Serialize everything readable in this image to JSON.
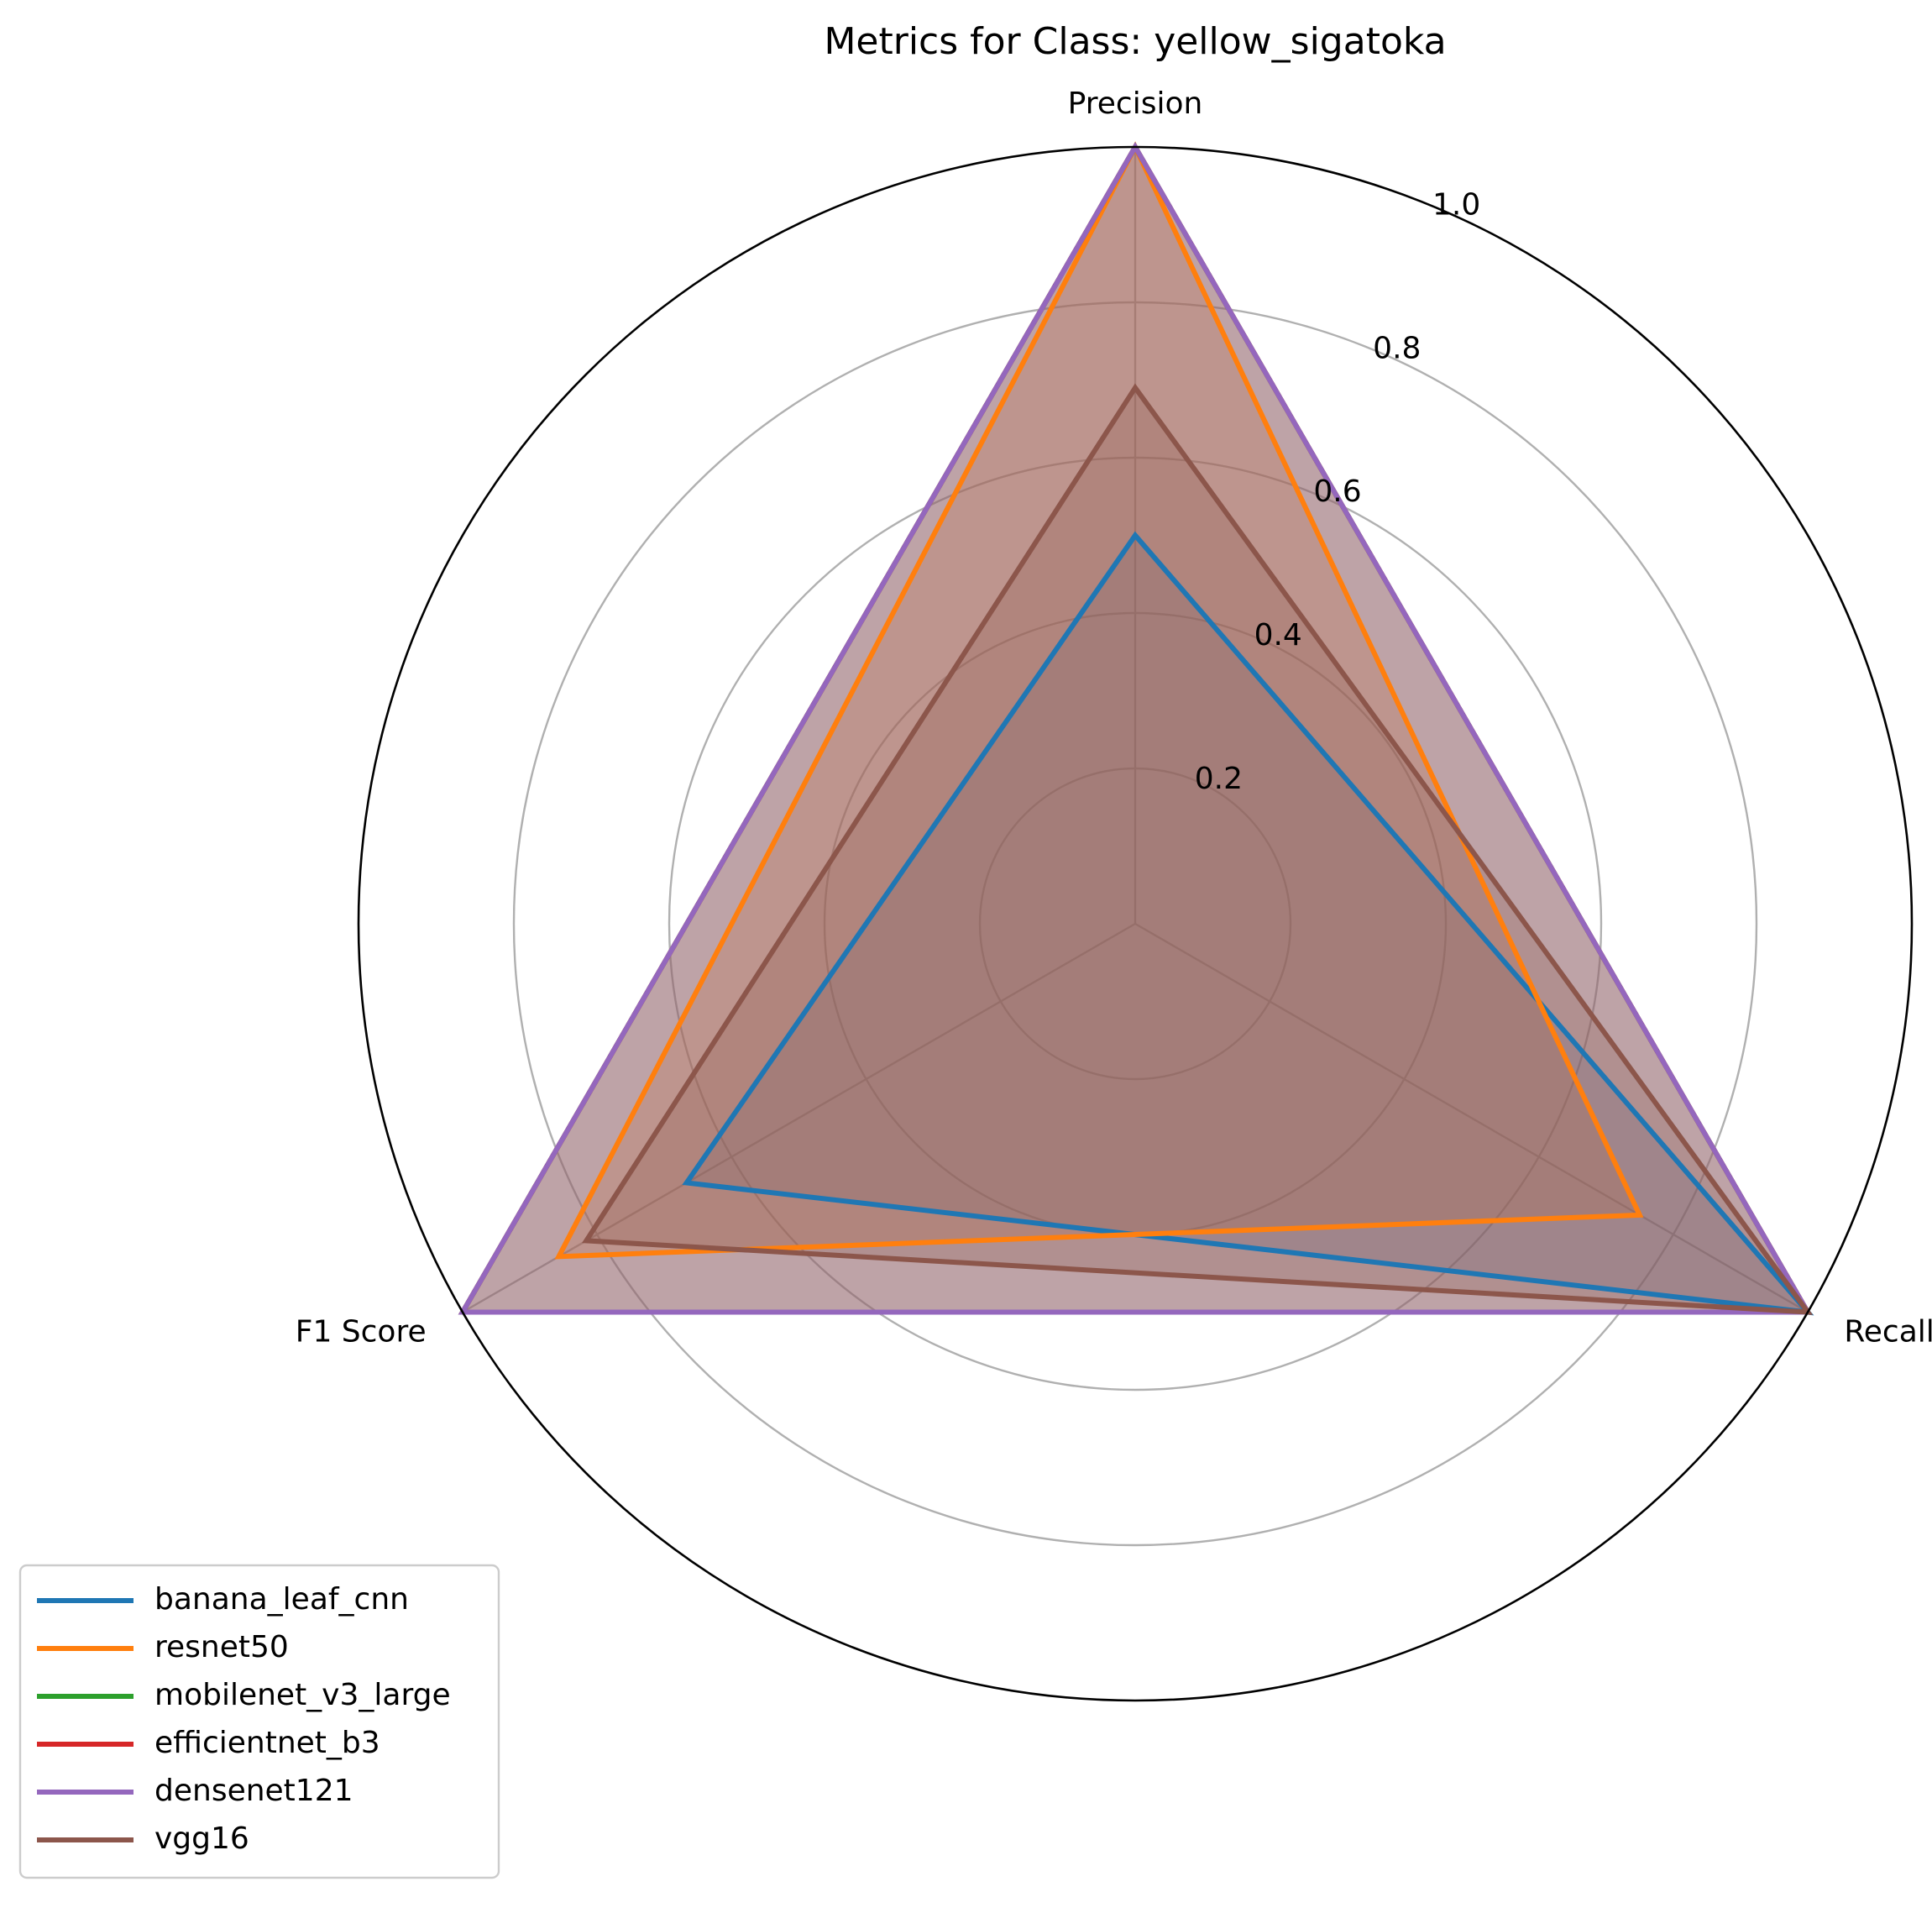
{
  "chart_data": {
    "type": "radar",
    "title": "Metrics for Class: yellow_sigatoka",
    "axes": [
      "Precision",
      "Recall",
      "F1 Score"
    ],
    "rlim": [
      0,
      1.0
    ],
    "rticks": [
      0.2,
      0.4,
      0.6,
      0.8,
      1.0
    ],
    "rtick_labels": [
      "0.2",
      "0.4",
      "0.6",
      "0.8",
      "1.0"
    ],
    "grid": true,
    "legend_position": "lower-left",
    "series": [
      {
        "name": "banana_leaf_cnn",
        "color": "#1f77b4",
        "values": [
          0.5,
          1.0,
          0.667
        ]
      },
      {
        "name": "resnet50",
        "color": "#ff7f0e",
        "values": [
          1.0,
          0.75,
          0.857
        ]
      },
      {
        "name": "mobilenet_v3_large",
        "color": "#2ca02c",
        "values": [
          1.0,
          1.0,
          1.0
        ]
      },
      {
        "name": "efficientnet_b3",
        "color": "#d62728",
        "values": [
          1.0,
          1.0,
          1.0
        ]
      },
      {
        "name": "densenet121",
        "color": "#9467bd",
        "values": [
          1.0,
          1.0,
          1.0
        ]
      },
      {
        "name": "vgg16",
        "color": "#8c564b",
        "values": [
          0.69,
          1.0,
          0.816
        ]
      }
    ]
  }
}
